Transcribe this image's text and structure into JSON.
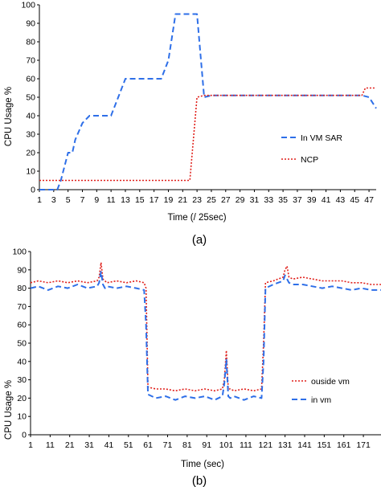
{
  "chart_data": [
    {
      "type": "line",
      "panel_label": "(a)",
      "xlabel": "Time (/ 25sec)",
      "ylabel": "CPU Usage %",
      "ylim": [
        0,
        100
      ],
      "yticks": [
        0,
        10,
        20,
        30,
        40,
        50,
        60,
        70,
        80,
        90,
        100
      ],
      "xlim": [
        1,
        48
      ],
      "xticks": [
        1,
        3,
        5,
        7,
        9,
        11,
        13,
        15,
        17,
        19,
        21,
        23,
        25,
        27,
        29,
        31,
        33,
        35,
        37,
        39,
        41,
        43,
        45,
        47
      ],
      "grid": false,
      "legend_position": "right",
      "series": [
        {
          "name": "In VM SAR",
          "color": "#2E6FE8",
          "style": "dashed",
          "x": [
            1,
            2,
            3,
            3.5,
            4,
            5,
            5.6,
            6,
            7,
            8,
            9,
            10,
            11,
            12,
            13,
            14,
            15,
            16,
            17,
            18,
            19,
            20,
            21,
            22,
            23,
            24,
            25,
            27,
            29,
            31,
            33,
            35,
            37,
            39,
            41,
            43,
            45,
            46,
            47,
            48
          ],
          "y": [
            0,
            0,
            0,
            0,
            5,
            20,
            20,
            27,
            36,
            40,
            40,
            40,
            40,
            50,
            60,
            60,
            60,
            60,
            60,
            60,
            70,
            95,
            95,
            95,
            95,
            50,
            51,
            51,
            51,
            51,
            51,
            51,
            51,
            51,
            51,
            51,
            51,
            51,
            50,
            44
          ]
        },
        {
          "name": "NCP",
          "color": "#E0201B",
          "style": "dotted",
          "x": [
            1,
            5,
            10,
            15,
            20,
            21,
            22,
            23,
            24,
            27,
            31,
            35,
            39,
            43,
            46,
            46.5,
            47,
            48
          ],
          "y": [
            5,
            5,
            5,
            5,
            5,
            5,
            5,
            50,
            51,
            51,
            51,
            51,
            51,
            51,
            51,
            55,
            55,
            55
          ]
        }
      ]
    },
    {
      "type": "line",
      "panel_label": "(b)",
      "xlabel": "Time (sec)",
      "ylabel": "CPU Usage %",
      "ylim": [
        0,
        100
      ],
      "yticks": [
        0,
        10,
        20,
        30,
        40,
        50,
        60,
        70,
        80,
        90,
        100
      ],
      "xlim": [
        1,
        180
      ],
      "xticks": [
        1,
        11,
        21,
        31,
        41,
        51,
        61,
        71,
        81,
        91,
        101,
        111,
        121,
        131,
        141,
        151,
        161,
        171
      ],
      "grid": false,
      "legend_position": "right",
      "series": [
        {
          "name": "ouside vm",
          "color": "#E0201B",
          "style": "dotted",
          "x": [
            1,
            5,
            10,
            15,
            20,
            25,
            30,
            35,
            36,
            37,
            38,
            39,
            40,
            45,
            50,
            55,
            59,
            60,
            61,
            65,
            70,
            75,
            80,
            85,
            90,
            95,
            99,
            100,
            101,
            102,
            103,
            105,
            110,
            115,
            119,
            120,
            121,
            125,
            130,
            131,
            132,
            133,
            135,
            140,
            145,
            150,
            155,
            160,
            165,
            170,
            175,
            180
          ],
          "y": [
            83,
            84,
            83,
            84,
            83,
            84,
            83,
            84,
            86,
            94,
            85,
            84,
            83,
            84,
            83,
            84,
            83,
            80,
            26,
            25,
            25,
            24,
            25,
            24,
            25,
            24,
            25,
            30,
            46,
            25,
            25,
            24,
            25,
            24,
            25,
            50,
            83,
            84,
            86,
            90,
            92,
            86,
            85,
            86,
            85,
            84,
            84,
            84,
            83,
            83,
            82,
            82
          ]
        },
        {
          "name": "in vm",
          "color": "#2E6FE8",
          "style": "dashed",
          "x": [
            1,
            5,
            10,
            15,
            20,
            25,
            30,
            35,
            36,
            37,
            38,
            39,
            40,
            45,
            50,
            55,
            59,
            60,
            61,
            65,
            70,
            75,
            80,
            85,
            90,
            95,
            99,
            100,
            101,
            102,
            103,
            105,
            110,
            115,
            119,
            120,
            121,
            125,
            130,
            131,
            132,
            133,
            135,
            140,
            145,
            150,
            155,
            160,
            165,
            170,
            175,
            180
          ],
          "y": [
            80,
            81,
            79,
            81,
            80,
            82,
            80,
            81,
            83,
            89,
            82,
            80,
            81,
            80,
            81,
            80,
            79,
            60,
            22,
            20,
            21,
            19,
            21,
            20,
            21,
            19,
            21,
            28,
            41,
            21,
            20,
            21,
            19,
            21,
            20,
            40,
            80,
            82,
            84,
            87,
            85,
            83,
            82,
            82,
            81,
            80,
            81,
            80,
            79,
            80,
            79,
            79
          ]
        }
      ]
    }
  ]
}
